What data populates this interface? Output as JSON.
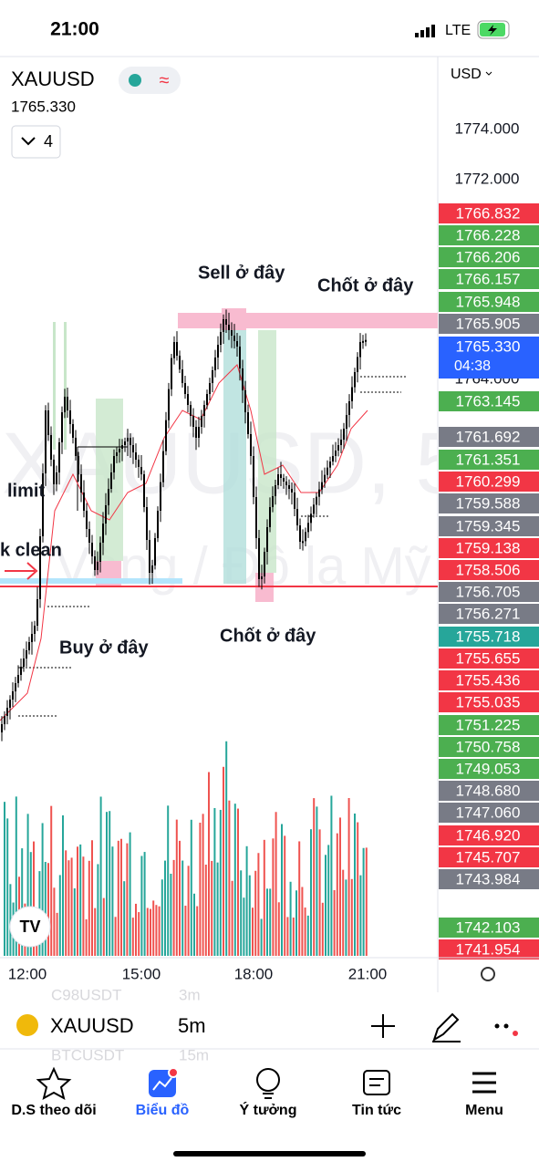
{
  "status_bar": {
    "time": "21:00",
    "network": "LTE"
  },
  "header": {
    "symbol": "XAUUSD",
    "price": "1765.330",
    "indicator_count": "4",
    "currency": "USD"
  },
  "watermark": {
    "line1": "XAUUSD, 5",
    "line2": "Vàng / Đô la Mỹ"
  },
  "annotations": [
    "Sell ở đây",
    "Chốt ở đây",
    "limit",
    "k clean",
    "Buy ở đây",
    "Chốt ở đây"
  ],
  "axis_labels": [
    "1774.000",
    "1772.000",
    "1764.000"
  ],
  "price_labels": [
    {
      "label": "1766.832",
      "color": "#f23645"
    },
    {
      "label": "1766.228",
      "color": "#4caf50"
    },
    {
      "label": "1766.206",
      "color": "#4caf50"
    },
    {
      "label": "1766.157",
      "color": "#4caf50"
    },
    {
      "label": "1765.948",
      "color": "#4caf50"
    },
    {
      "label": "1765.905",
      "color": "#787b86"
    },
    {
      "label": "1765.330",
      "color": "#2962ff"
    },
    {
      "label": "1763.145",
      "color": "#4caf50"
    },
    {
      "label": "1761.692",
      "color": "#787b86"
    },
    {
      "label": "1761.351",
      "color": "#4caf50"
    },
    {
      "label": "1760.299",
      "color": "#f23645"
    },
    {
      "label": "1759.588",
      "color": "#787b86"
    },
    {
      "label": "1759.345",
      "color": "#787b86"
    },
    {
      "label": "1759.138",
      "color": "#f23645"
    },
    {
      "label": "1758.506",
      "color": "#f23645"
    },
    {
      "label": "1756.705",
      "color": "#787b86"
    },
    {
      "label": "1756.271",
      "color": "#787b86"
    },
    {
      "label": "1755.718",
      "color": "#26a69a"
    },
    {
      "label": "1755.655",
      "color": "#f23645"
    },
    {
      "label": "1755.436",
      "color": "#f23645"
    },
    {
      "label": "1755.035",
      "color": "#f23645"
    },
    {
      "label": "1751.225",
      "color": "#4caf50"
    },
    {
      "label": "1750.758",
      "color": "#4caf50"
    },
    {
      "label": "1749.053",
      "color": "#4caf50"
    },
    {
      "label": "1748.680",
      "color": "#787b86"
    },
    {
      "label": "1747.060",
      "color": "#787b86"
    },
    {
      "label": "1746.920",
      "color": "#f23645"
    },
    {
      "label": "1745.707",
      "color": "#f23645"
    },
    {
      "label": "1743.984",
      "color": "#787b86"
    },
    {
      "label": "1742.103",
      "color": "#4caf50"
    },
    {
      "label": "1741.954",
      "color": "#f23645"
    }
  ],
  "countdown": "04:38",
  "time_axis": [
    "12:00",
    "15:00",
    "18:00",
    "21:00"
  ],
  "toolbar": {
    "symbol": "XAUUSD",
    "interval": "5m",
    "ghost": [
      "C98USDT",
      "3m",
      "BTCUSDT",
      "15m"
    ]
  },
  "nav": {
    "tabs": [
      "D.S theo dõi",
      "Biểu đồ",
      "Ý tưởng",
      "Tin tức",
      "Menu"
    ],
    "active": 1
  }
}
